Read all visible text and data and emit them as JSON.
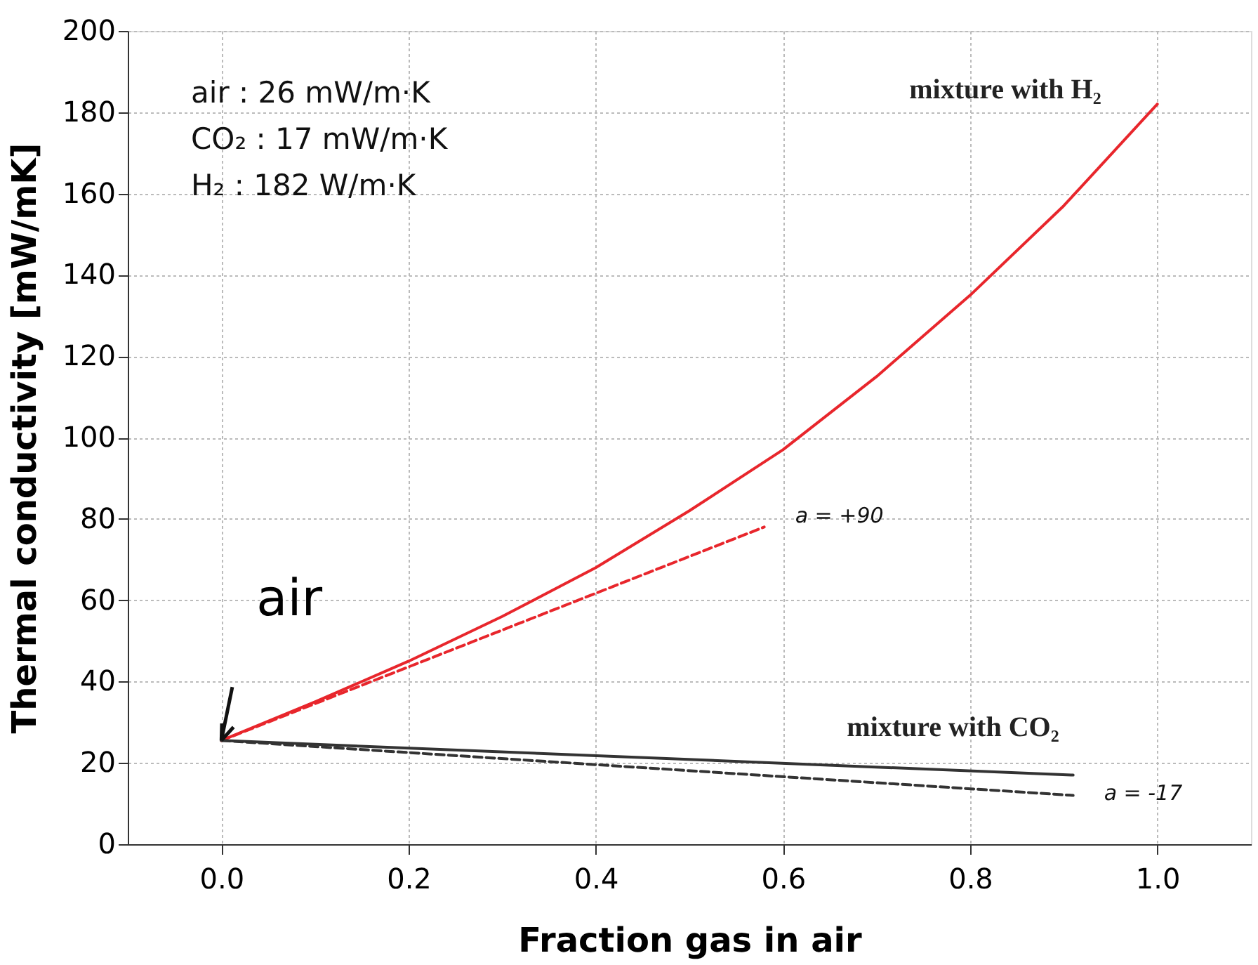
{
  "chart_data": {
    "type": "line",
    "xlabel": "Fraction gas in air",
    "ylabel": "Thermal conductivity [mW/mK]",
    "xlim": [
      -0.1,
      1.1
    ],
    "ylim": [
      0,
      200
    ],
    "xticks": [
      {
        "value": 0,
        "label": "0.0"
      },
      {
        "value": 0.2,
        "label": "0.2"
      },
      {
        "value": 0.4,
        "label": "0.4"
      },
      {
        "value": 0.6,
        "label": "0.6"
      },
      {
        "value": 0.8,
        "label": "0.8"
      },
      {
        "value": 1,
        "label": "1.0"
      }
    ],
    "yticks": [
      0,
      20,
      40,
      60,
      80,
      100,
      120,
      140,
      160,
      180,
      200
    ],
    "grid": true,
    "marker": "none",
    "series": [
      {
        "name": "mixture with H₂",
        "color": "#e8262c",
        "line_style": "solid",
        "x": [
          0,
          0.1,
          0.2,
          0.3,
          0.4,
          0.5,
          0.6,
          0.7,
          0.8,
          0.9,
          1.0
        ],
        "values": [
          25.5,
          35,
          45,
          56,
          68,
          82,
          97,
          115,
          135,
          157,
          182
        ]
      },
      {
        "color": "#e8262c",
        "line_style": "dashed",
        "x": [
          0,
          0.58
        ],
        "values": [
          25.5,
          78
        ]
      },
      {
        "name": "mixture with CO₂",
        "color": "#333333",
        "line_style": "solid",
        "x": [
          0,
          0.91
        ],
        "values": [
          25.5,
          17
        ]
      },
      {
        "color": "#333333",
        "line_style": "dashed",
        "x": [
          0,
          0.91
        ],
        "values": [
          25.5,
          12
        ]
      }
    ],
    "annotations": [
      "air :   26 mW/m·K",
      "CO₂ : 17 mW/m·K",
      "H₂ :    182 W/m·K",
      {
        "text": "a = +90",
        "x": 0.58,
        "y": 78
      },
      {
        "text": "a = -17",
        "x": 0.91,
        "y": 12
      },
      {
        "text": "air",
        "x": 0,
        "y": 25.5
      }
    ]
  }
}
